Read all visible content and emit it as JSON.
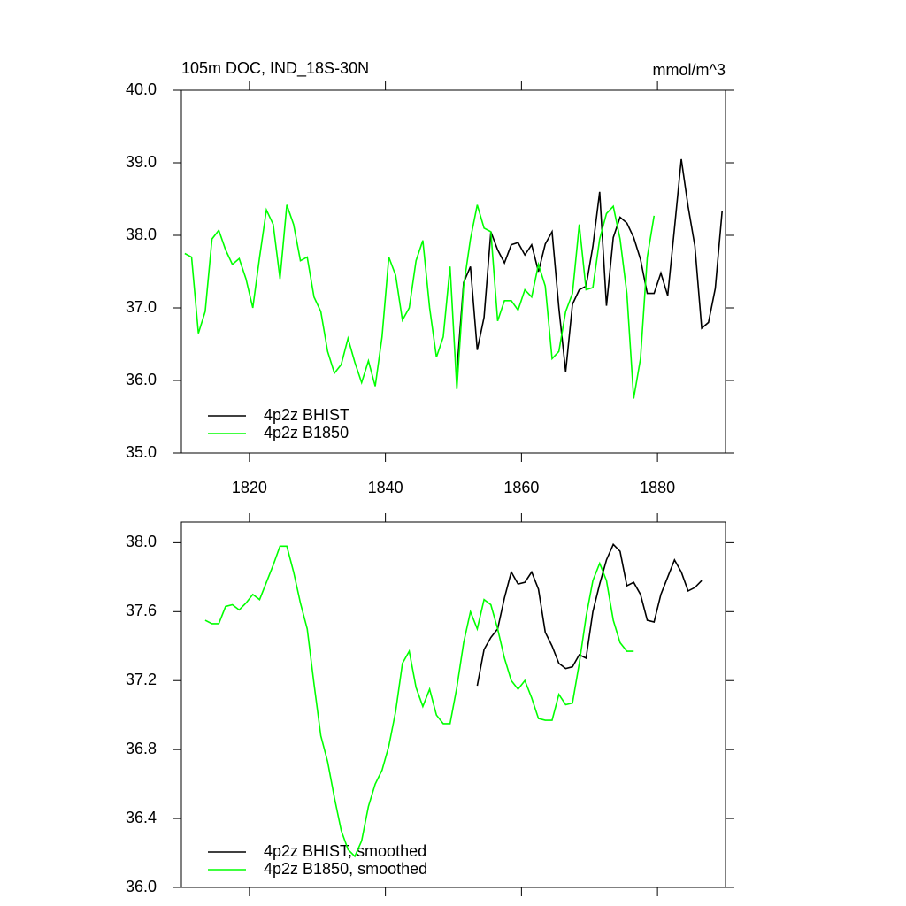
{
  "chart_data": [
    {
      "type": "line",
      "title": "105m DOC, IND_18S-30N",
      "units": "mmol/m^3",
      "xlim": [
        1810,
        1890
      ],
      "xticks": [
        1820,
        1840,
        1860,
        1880
      ],
      "ylim": [
        35,
        40
      ],
      "yticks": [
        {
          "value": 35,
          "label": "35.0"
        },
        {
          "value": 36,
          "label": "36.0"
        },
        {
          "value": 37,
          "label": "37.0"
        },
        {
          "value": 38,
          "label": "38.0"
        },
        {
          "value": 39,
          "label": "39.0"
        },
        {
          "value": 40,
          "label": "40.0"
        }
      ],
      "series": [
        {
          "name": "4p2z BHIST",
          "color": "#000000",
          "x": [
            1850.5,
            1851.5,
            1852.5,
            1853.5,
            1854.5,
            1855.5,
            1856.5,
            1857.5,
            1858.5,
            1859.5,
            1860.5,
            1861.5,
            1862.5,
            1863.5,
            1864.5,
            1865.5,
            1866.5,
            1867.5,
            1868.5,
            1869.5,
            1870.5,
            1871.5,
            1872.5,
            1873.5,
            1874.5,
            1875.5,
            1876.5,
            1877.5,
            1878.5,
            1879.5,
            1880.5,
            1881.5,
            1882.5,
            1883.5,
            1884.5,
            1885.5,
            1886.5,
            1887.5,
            1888.5,
            1889.5
          ],
          "values": [
            36.12,
            37.35,
            37.57,
            36.42,
            36.87,
            38.05,
            37.8,
            37.62,
            37.87,
            37.9,
            37.73,
            37.87,
            37.5,
            37.88,
            38.05,
            37.0,
            36.12,
            37.05,
            37.25,
            37.3,
            37.85,
            38.6,
            37.03,
            37.97,
            38.25,
            38.17,
            37.97,
            37.67,
            37.2,
            37.2,
            37.48,
            37.17,
            38.1,
            39.05,
            38.4,
            37.85,
            36.72,
            36.8,
            37.27,
            38.33
          ]
        },
        {
          "name": "4p2z B1850",
          "color": "#00ff00",
          "x": [
            1810.5,
            1811.5,
            1812.5,
            1813.5,
            1814.5,
            1815.5,
            1816.5,
            1817.5,
            1818.5,
            1819.5,
            1820.5,
            1821.5,
            1822.5,
            1823.5,
            1824.5,
            1825.5,
            1826.5,
            1827.5,
            1828.5,
            1829.5,
            1830.5,
            1831.5,
            1832.5,
            1833.5,
            1834.5,
            1835.5,
            1836.5,
            1837.5,
            1838.5,
            1839.5,
            1840.5,
            1841.5,
            1842.5,
            1843.5,
            1844.5,
            1845.5,
            1846.5,
            1847.5,
            1848.5,
            1849.5,
            1850.5,
            1851.5,
            1852.5,
            1853.5,
            1854.5,
            1855.5,
            1856.5,
            1857.5,
            1858.5,
            1859.5,
            1860.5,
            1861.5,
            1862.5,
            1863.5,
            1864.5,
            1865.5,
            1866.5,
            1867.5,
            1868.5,
            1869.5,
            1870.5,
            1871.5,
            1872.5,
            1873.5,
            1874.5,
            1875.5,
            1876.5,
            1877.5,
            1878.5,
            1879.5
          ],
          "values": [
            37.75,
            37.7,
            36.65,
            36.95,
            37.95,
            38.07,
            37.8,
            37.6,
            37.68,
            37.4,
            37.0,
            37.7,
            38.35,
            38.15,
            37.4,
            38.42,
            38.15,
            37.65,
            37.7,
            37.15,
            36.95,
            36.4,
            36.1,
            36.22,
            36.58,
            36.25,
            35.97,
            36.27,
            35.92,
            36.6,
            37.7,
            37.45,
            36.83,
            37.0,
            37.65,
            37.93,
            37.0,
            36.32,
            36.6,
            37.57,
            35.88,
            37.3,
            37.95,
            38.42,
            38.1,
            38.05,
            36.82,
            37.1,
            37.1,
            36.97,
            37.25,
            37.15,
            37.6,
            37.3,
            36.3,
            36.4,
            36.95,
            37.2,
            38.15,
            37.25,
            37.28,
            37.95,
            38.3,
            38.4,
            37.95,
            37.2,
            35.75,
            36.3,
            37.7,
            38.27
          ]
        }
      ]
    },
    {
      "type": "line",
      "xlim": [
        1810,
        1890
      ],
      "xticks": [
        1820,
        1840,
        1860,
        1880
      ],
      "ylim": [
        36,
        38.12
      ],
      "yticks": [
        {
          "value": 36,
          "label": "36.0"
        },
        {
          "value": 36.4,
          "label": "36.4"
        },
        {
          "value": 36.8,
          "label": "36.8"
        },
        {
          "value": 37.2,
          "label": "37.2"
        },
        {
          "value": 37.6,
          "label": "37.6"
        },
        {
          "value": 38,
          "label": "38.0"
        }
      ],
      "series": [
        {
          "name": "4p2z BHIST, smoothed",
          "color": "#000000",
          "x": [
            1853.5,
            1854.5,
            1855.5,
            1856.5,
            1857.5,
            1858.5,
            1859.5,
            1860.5,
            1861.5,
            1862.5,
            1863.5,
            1864.5,
            1865.5,
            1866.5,
            1867.5,
            1868.5,
            1869.5,
            1870.5,
            1871.5,
            1872.5,
            1873.5,
            1874.5,
            1875.5,
            1876.5,
            1877.5,
            1878.5,
            1879.5,
            1880.5,
            1881.5,
            1882.5,
            1883.5,
            1884.5,
            1885.5,
            1886.5
          ],
          "values": [
            37.17,
            37.38,
            37.45,
            37.5,
            37.68,
            37.83,
            37.76,
            37.77,
            37.83,
            37.73,
            37.48,
            37.4,
            37.3,
            37.27,
            37.28,
            37.35,
            37.33,
            37.6,
            37.76,
            37.9,
            37.99,
            37.95,
            37.75,
            37.77,
            37.7,
            37.55,
            37.54,
            37.7,
            37.8,
            37.9,
            37.83,
            37.72,
            37.74,
            37.78
          ]
        },
        {
          "name": "4p2z B1850, smoothed",
          "color": "#00ff00",
          "x": [
            1813.5,
            1814.5,
            1815.5,
            1816.5,
            1817.5,
            1818.5,
            1819.5,
            1820.5,
            1821.5,
            1822.5,
            1823.5,
            1824.5,
            1825.5,
            1826.5,
            1827.5,
            1828.5,
            1829.5,
            1830.5,
            1831.5,
            1832.5,
            1833.5,
            1834.5,
            1835.5,
            1836.5,
            1837.5,
            1838.5,
            1839.5,
            1840.5,
            1841.5,
            1842.5,
            1843.5,
            1844.5,
            1845.5,
            1846.5,
            1847.5,
            1848.5,
            1849.5,
            1850.5,
            1851.5,
            1852.5,
            1853.5,
            1854.5,
            1855.5,
            1856.5,
            1857.5,
            1858.5,
            1859.5,
            1860.5,
            1861.5,
            1862.5,
            1863.5,
            1864.5,
            1865.5,
            1866.5,
            1867.5,
            1868.5,
            1869.5,
            1870.5,
            1871.5,
            1872.5,
            1873.5,
            1874.5,
            1875.5,
            1876.5
          ],
          "values": [
            37.55,
            37.53,
            37.53,
            37.63,
            37.64,
            37.61,
            37.65,
            37.7,
            37.67,
            37.77,
            37.87,
            37.98,
            37.98,
            37.83,
            37.65,
            37.5,
            37.18,
            36.88,
            36.73,
            36.52,
            36.33,
            36.22,
            36.18,
            36.27,
            36.47,
            36.6,
            36.68,
            36.82,
            37.02,
            37.3,
            37.37,
            37.16,
            37.05,
            37.15,
            37.0,
            36.95,
            36.95,
            37.16,
            37.42,
            37.6,
            37.5,
            37.67,
            37.64,
            37.5,
            37.33,
            37.2,
            37.15,
            37.2,
            37.1,
            36.98,
            36.97,
            36.97,
            37.12,
            37.06,
            37.07,
            37.3,
            37.57,
            37.78,
            37.88,
            37.78,
            37.55,
            37.42,
            37.37,
            37.37
          ]
        }
      ]
    }
  ]
}
